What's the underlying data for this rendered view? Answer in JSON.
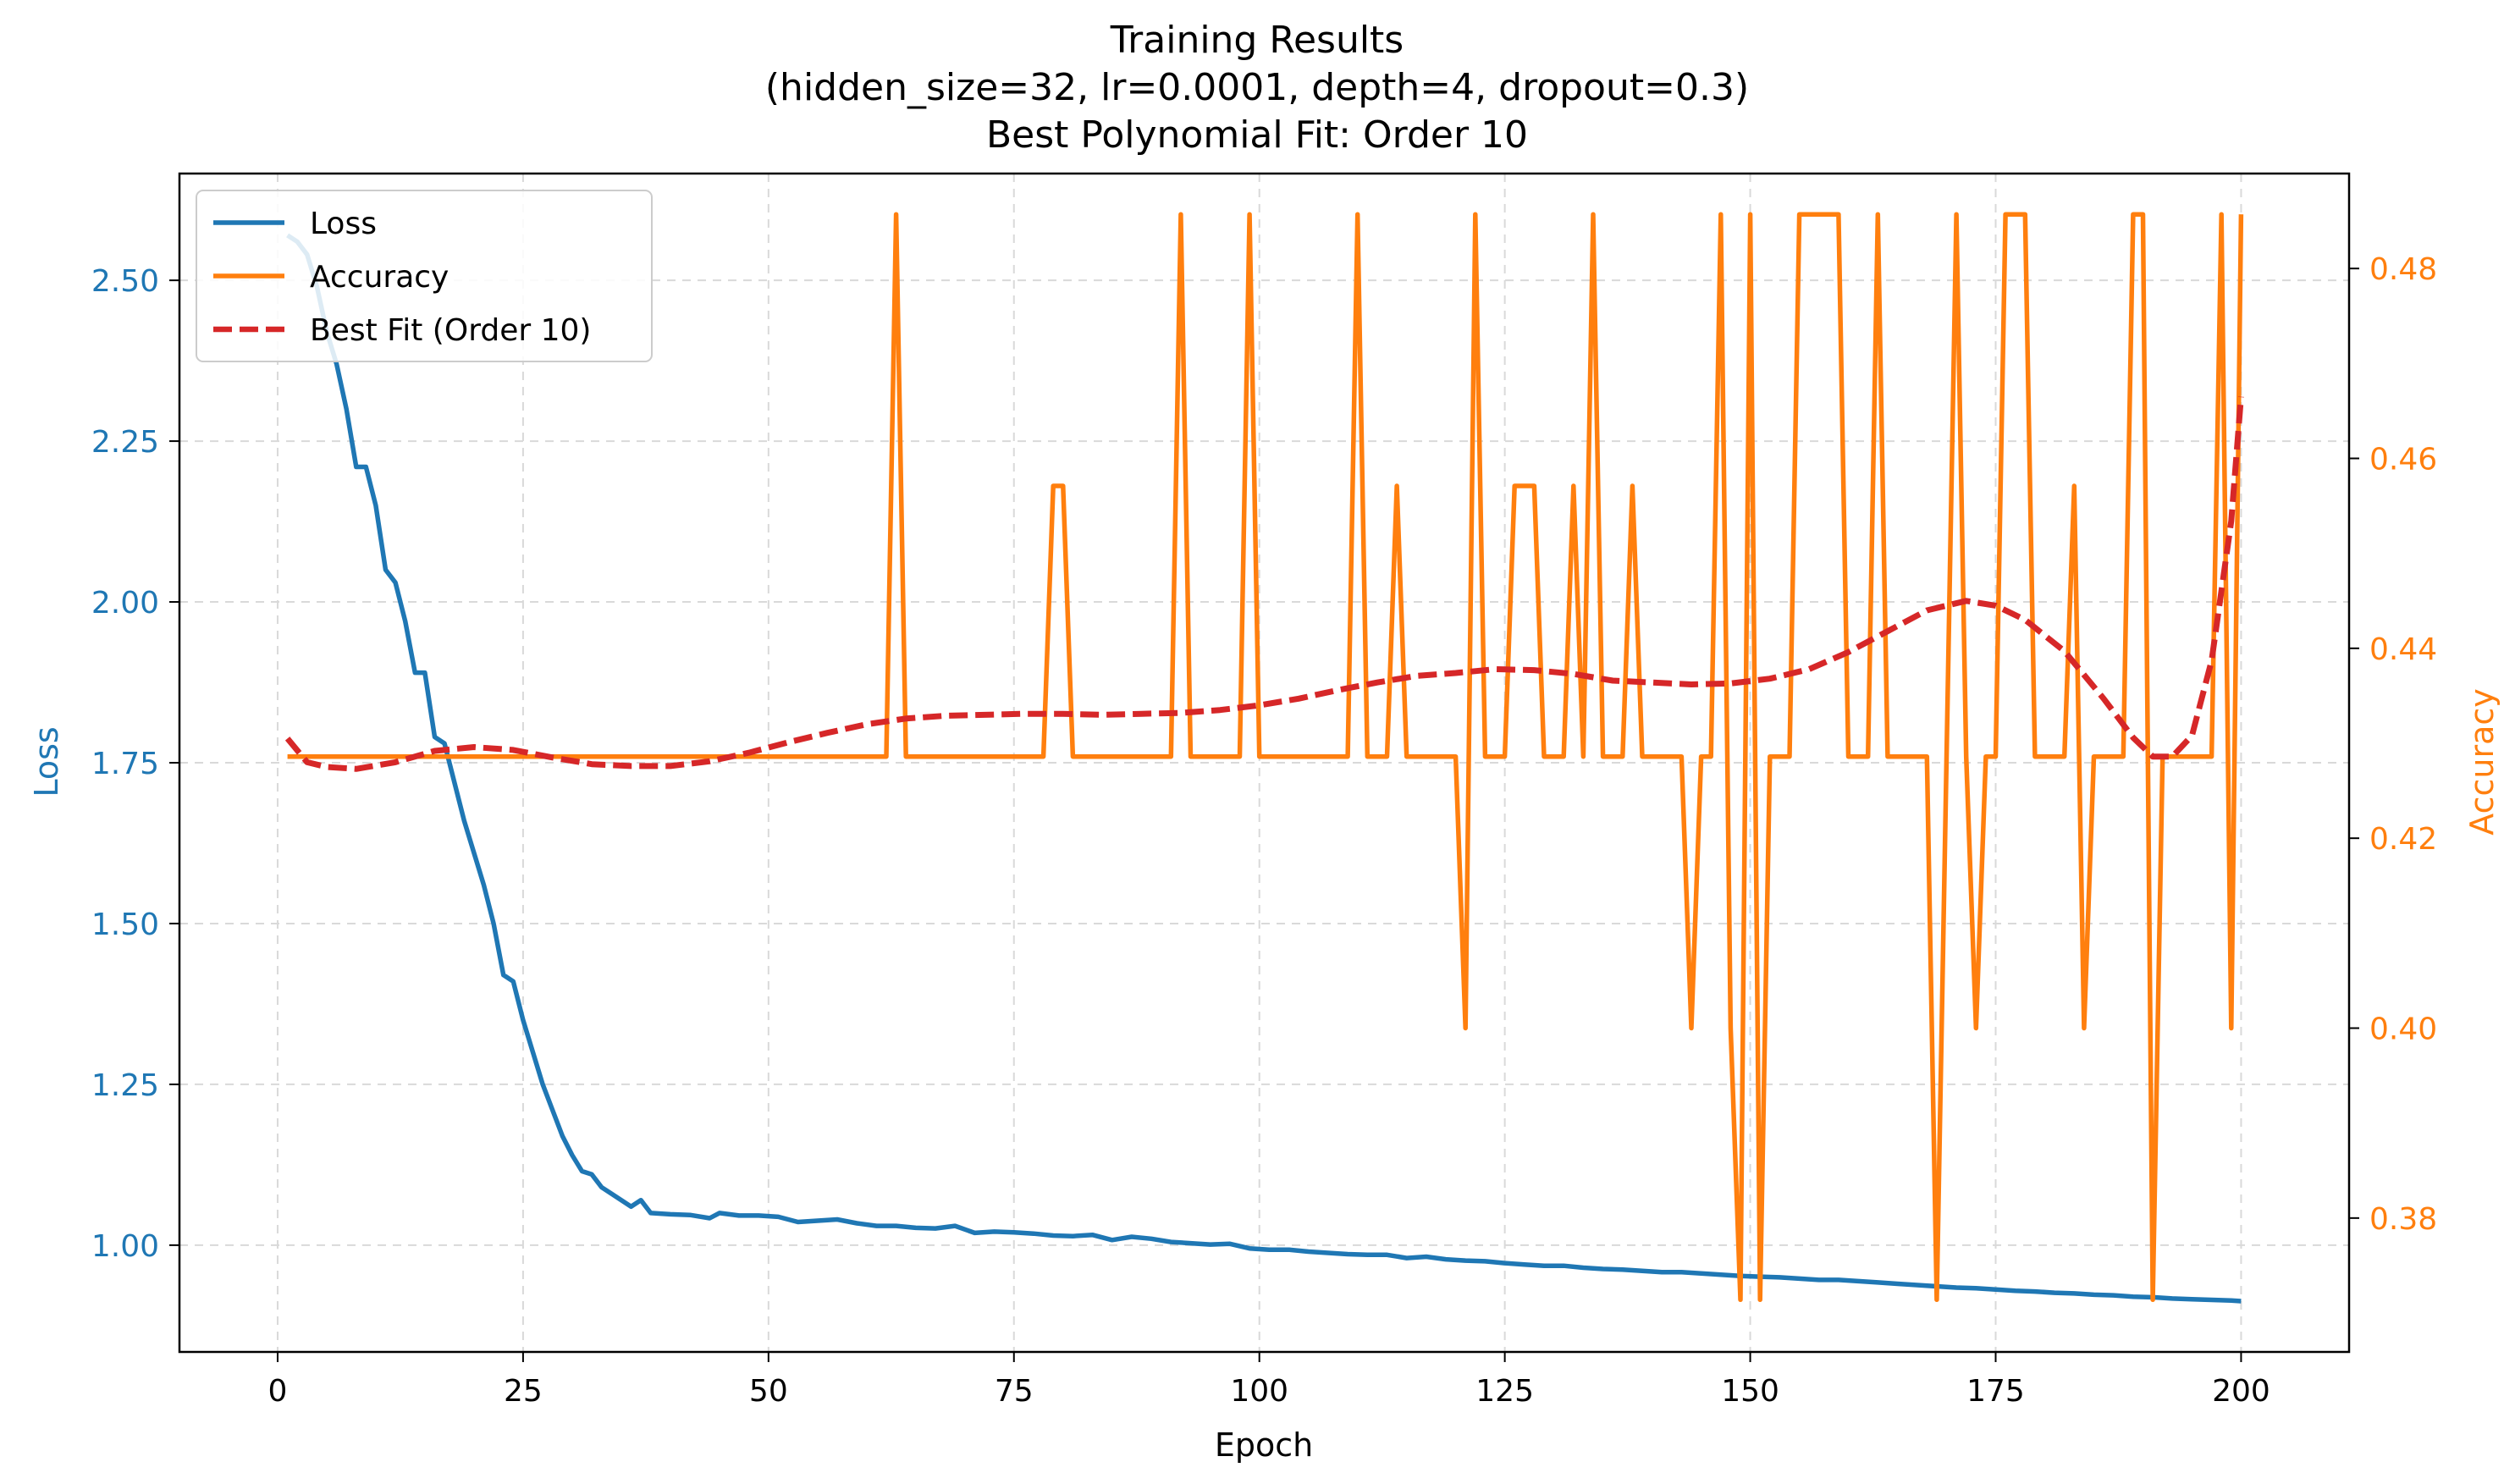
{
  "title_lines": [
    "Training Results",
    "(hidden_size=32, lr=0.0001, depth=4, dropout=0.3)",
    "Best Polynomial Fit: Order 10"
  ],
  "colors": {
    "loss": "#1f77b4",
    "accuracy": "#ff7f0e",
    "fit": "#d62728",
    "grid": "#d9d9d9",
    "axes": "#000000"
  },
  "chart_data": {
    "type": "line",
    "title": "Training Results (hidden_size=32, lr=0.0001, depth=4, dropout=0.3) Best Polynomial Fit: Order 10",
    "xlabel": "Epoch",
    "ylabel_left": "Loss",
    "ylabel_right": "Accuracy",
    "xlim": [
      -10,
      211
    ],
    "ylim_left": [
      0.834,
      2.666
    ],
    "ylim_right": [
      0.3659,
      0.49
    ],
    "x_ticks": [
      0,
      25,
      50,
      75,
      100,
      125,
      150,
      175,
      200
    ],
    "y_left_ticks": [
      "1.00",
      "1.25",
      "1.50",
      "1.75",
      "2.00",
      "2.25",
      "2.50"
    ],
    "y_right_ticks": [
      "0.38",
      "0.40",
      "0.42",
      "0.44",
      "0.46",
      "0.48"
    ],
    "grid": true,
    "legend_position": "top-left",
    "series": [
      {
        "name": "Loss",
        "axis": "left",
        "style": "solid",
        "points": [
          [
            1,
            2.57
          ],
          [
            2,
            2.56
          ],
          [
            3,
            2.54
          ],
          [
            4,
            2.49
          ],
          [
            5,
            2.42
          ],
          [
            6,
            2.37
          ],
          [
            7,
            2.3
          ],
          [
            8,
            2.21
          ],
          [
            9,
            2.21
          ],
          [
            10,
            2.15
          ],
          [
            11,
            2.05
          ],
          [
            12,
            2.03
          ],
          [
            13,
            1.97
          ],
          [
            14,
            1.89
          ],
          [
            15,
            1.89
          ],
          [
            16,
            1.79
          ],
          [
            17,
            1.78
          ],
          [
            18,
            1.72
          ],
          [
            19,
            1.66
          ],
          [
            20,
            1.61
          ],
          [
            21,
            1.56
          ],
          [
            22,
            1.5
          ],
          [
            23,
            1.42
          ],
          [
            24,
            1.41
          ],
          [
            25,
            1.35
          ],
          [
            26,
            1.3
          ],
          [
            27,
            1.25
          ],
          [
            28,
            1.21
          ],
          [
            29,
            1.17
          ],
          [
            30,
            1.14
          ],
          [
            31,
            1.115
          ],
          [
            32,
            1.11
          ],
          [
            33,
            1.09
          ],
          [
            34,
            1.08
          ],
          [
            35,
            1.07
          ],
          [
            36,
            1.06
          ],
          [
            37,
            1.07
          ],
          [
            38,
            1.05
          ],
          [
            40,
            1.048
          ],
          [
            42,
            1.047
          ],
          [
            44,
            1.042
          ],
          [
            45,
            1.05
          ],
          [
            47,
            1.046
          ],
          [
            49,
            1.046
          ],
          [
            51,
            1.044
          ],
          [
            53,
            1.036
          ],
          [
            55,
            1.038
          ],
          [
            57,
            1.04
          ],
          [
            59,
            1.034
          ],
          [
            61,
            1.03
          ],
          [
            63,
            1.03
          ],
          [
            65,
            1.027
          ],
          [
            67,
            1.026
          ],
          [
            69,
            1.03
          ],
          [
            71,
            1.019
          ],
          [
            73,
            1.021
          ],
          [
            75,
            1.02
          ],
          [
            77,
            1.018
          ],
          [
            79,
            1.015
          ],
          [
            81,
            1.014
          ],
          [
            83,
            1.016
          ],
          [
            85,
            1.008
          ],
          [
            87,
            1.013
          ],
          [
            89,
            1.01
          ],
          [
            91,
            1.005
          ],
          [
            93,
            1.003
          ],
          [
            95,
            1.001
          ],
          [
            97,
            1.002
          ],
          [
            99,
            0.995
          ],
          [
            101,
            0.993
          ],
          [
            103,
            0.993
          ],
          [
            105,
            0.99
          ],
          [
            107,
            0.988
          ],
          [
            109,
            0.986
          ],
          [
            111,
            0.985
          ],
          [
            113,
            0.985
          ],
          [
            115,
            0.98
          ],
          [
            117,
            0.982
          ],
          [
            119,
            0.978
          ],
          [
            121,
            0.976
          ],
          [
            123,
            0.975
          ],
          [
            125,
            0.972
          ],
          [
            127,
            0.97
          ],
          [
            129,
            0.968
          ],
          [
            131,
            0.968
          ],
          [
            133,
            0.965
          ],
          [
            135,
            0.963
          ],
          [
            137,
            0.962
          ],
          [
            139,
            0.96
          ],
          [
            141,
            0.958
          ],
          [
            143,
            0.958
          ],
          [
            145,
            0.956
          ],
          [
            147,
            0.954
          ],
          [
            149,
            0.952
          ],
          [
            151,
            0.951
          ],
          [
            153,
            0.95
          ],
          [
            155,
            0.948
          ],
          [
            157,
            0.946
          ],
          [
            159,
            0.946
          ],
          [
            161,
            0.944
          ],
          [
            163,
            0.942
          ],
          [
            165,
            0.94
          ],
          [
            167,
            0.938
          ],
          [
            169,
            0.936
          ],
          [
            171,
            0.934
          ],
          [
            173,
            0.933
          ],
          [
            175,
            0.931
          ],
          [
            177,
            0.929
          ],
          [
            179,
            0.928
          ],
          [
            181,
            0.926
          ],
          [
            183,
            0.925
          ],
          [
            185,
            0.923
          ],
          [
            187,
            0.922
          ],
          [
            189,
            0.92
          ],
          [
            191,
            0.919
          ],
          [
            193,
            0.917
          ],
          [
            195,
            0.916
          ],
          [
            197,
            0.915
          ],
          [
            199,
            0.914
          ],
          [
            200,
            0.913
          ]
        ]
      },
      {
        "name": "Accuracy",
        "axis": "right",
        "style": "solid",
        "points": [
          [
            1,
            0.4286
          ],
          [
            62,
            0.4286
          ],
          [
            63,
            0.4857
          ],
          [
            64,
            0.4286
          ],
          [
            78,
            0.4286
          ],
          [
            79,
            0.4571
          ],
          [
            80,
            0.4571
          ],
          [
            81,
            0.4286
          ],
          [
            91,
            0.4286
          ],
          [
            92,
            0.4857
          ],
          [
            93,
            0.4286
          ],
          [
            98,
            0.4286
          ],
          [
            99,
            0.4857
          ],
          [
            100,
            0.4286
          ],
          [
            109,
            0.4286
          ],
          [
            110,
            0.4857
          ],
          [
            111,
            0.4286
          ],
          [
            113,
            0.4286
          ],
          [
            114,
            0.4571
          ],
          [
            115,
            0.4286
          ],
          [
            120,
            0.4286
          ],
          [
            121,
            0.4
          ],
          [
            122,
            0.4857
          ],
          [
            123,
            0.4286
          ],
          [
            125,
            0.4286
          ],
          [
            126,
            0.4571
          ],
          [
            128,
            0.4571
          ],
          [
            129,
            0.4286
          ],
          [
            131,
            0.4286
          ],
          [
            132,
            0.4571
          ],
          [
            133,
            0.4286
          ],
          [
            134,
            0.4857
          ],
          [
            135,
            0.4286
          ],
          [
            137,
            0.4286
          ],
          [
            138,
            0.4571
          ],
          [
            139,
            0.4286
          ],
          [
            143,
            0.4286
          ],
          [
            144,
            0.4
          ],
          [
            145,
            0.4286
          ],
          [
            146,
            0.4286
          ],
          [
            147,
            0.4857
          ],
          [
            148,
            0.4
          ],
          [
            149,
            0.3714
          ],
          [
            150,
            0.4857
          ],
          [
            151,
            0.3714
          ],
          [
            152,
            0.4286
          ],
          [
            154,
            0.4286
          ],
          [
            155,
            0.4857
          ],
          [
            159,
            0.4857
          ],
          [
            160,
            0.4286
          ],
          [
            162,
            0.4286
          ],
          [
            163,
            0.4857
          ],
          [
            164,
            0.4286
          ],
          [
            167,
            0.4286
          ],
          [
            168,
            0.4286
          ],
          [
            169,
            0.3714
          ],
          [
            170,
            0.4286
          ],
          [
            171,
            0.4857
          ],
          [
            172,
            0.4286
          ],
          [
            173,
            0.4
          ],
          [
            174,
            0.4286
          ],
          [
            175,
            0.4286
          ],
          [
            176,
            0.4857
          ],
          [
            178,
            0.4857
          ],
          [
            179,
            0.4286
          ],
          [
            182,
            0.4286
          ],
          [
            183,
            0.4571
          ],
          [
            184,
            0.4
          ],
          [
            185,
            0.4286
          ],
          [
            188,
            0.4286
          ],
          [
            189,
            0.4857
          ],
          [
            190,
            0.4857
          ],
          [
            191,
            0.3714
          ],
          [
            192,
            0.4286
          ],
          [
            197,
            0.4286
          ],
          [
            198,
            0.4857
          ],
          [
            199,
            0.4
          ],
          [
            200,
            0.4857
          ]
        ]
      },
      {
        "name": "Best Fit (Order 10)",
        "axis": "right",
        "style": "dashed",
        "points": [
          [
            1,
            0.4305
          ],
          [
            3,
            0.428
          ],
          [
            5,
            0.4275
          ],
          [
            8,
            0.4273
          ],
          [
            12,
            0.428
          ],
          [
            16,
            0.4292
          ],
          [
            20,
            0.4296
          ],
          [
            24,
            0.4293
          ],
          [
            28,
            0.4285
          ],
          [
            32,
            0.4278
          ],
          [
            36,
            0.4276
          ],
          [
            40,
            0.4276
          ],
          [
            44,
            0.4281
          ],
          [
            48,
            0.429
          ],
          [
            52,
            0.4301
          ],
          [
            56,
            0.4311
          ],
          [
            60,
            0.432
          ],
          [
            64,
            0.4326
          ],
          [
            68,
            0.4329
          ],
          [
            72,
            0.433
          ],
          [
            76,
            0.4331
          ],
          [
            80,
            0.4331
          ],
          [
            84,
            0.433
          ],
          [
            88,
            0.4331
          ],
          [
            92,
            0.4332
          ],
          [
            96,
            0.4335
          ],
          [
            100,
            0.434
          ],
          [
            104,
            0.4347
          ],
          [
            108,
            0.4356
          ],
          [
            112,
            0.4364
          ],
          [
            116,
            0.4371
          ],
          [
            120,
            0.4374
          ],
          [
            124,
            0.4378
          ],
          [
            128,
            0.4377
          ],
          [
            132,
            0.4373
          ],
          [
            136,
            0.4366
          ],
          [
            140,
            0.4364
          ],
          [
            144,
            0.4362
          ],
          [
            148,
            0.4363
          ],
          [
            152,
            0.4368
          ],
          [
            156,
            0.4378
          ],
          [
            160,
            0.4396
          ],
          [
            164,
            0.4418
          ],
          [
            168,
            0.444
          ],
          [
            172,
            0.445
          ],
          [
            175,
            0.4445
          ],
          [
            178,
            0.443
          ],
          [
            182,
            0.4397
          ],
          [
            186,
            0.4347
          ],
          [
            189,
            0.4306
          ],
          [
            191,
            0.4286
          ],
          [
            193,
            0.4286
          ],
          [
            195,
            0.4308
          ],
          [
            197,
            0.4387
          ],
          [
            199,
            0.4534
          ],
          [
            200,
            0.4665
          ]
        ]
      }
    ]
  }
}
